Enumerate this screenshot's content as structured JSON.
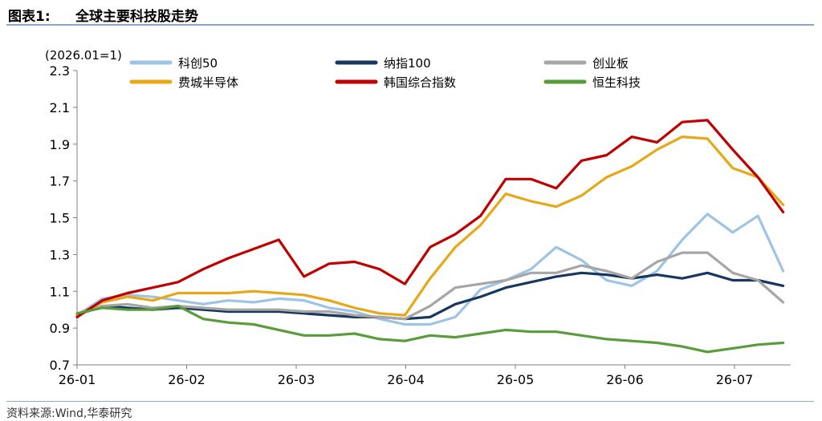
{
  "header": {
    "prefix": "图表1:",
    "title": "全球主要科技股走势"
  },
  "footer": {
    "source": "资料来源:Wind,华泰研究"
  },
  "chart_data": {
    "type": "line",
    "annotation": "(2026.01=1)",
    "ylim": [
      0.7,
      2.3
    ],
    "yticks": [
      0.7,
      0.9,
      1.1,
      1.3,
      1.5,
      1.7,
      1.9,
      2.1,
      2.3
    ],
    "xticks": [
      "26-01",
      "26-02",
      "26-03",
      "26-04",
      "26-05",
      "26-06",
      "26-07"
    ],
    "x_points": [
      "26-01-01",
      "26-01-08",
      "26-01-15",
      "26-01-22",
      "26-01-29",
      "26-02-05",
      "26-02-12",
      "26-02-19",
      "26-02-26",
      "26-03-05",
      "26-03-12",
      "26-03-19",
      "26-03-26",
      "26-04-02",
      "26-04-09",
      "26-04-16",
      "26-04-23",
      "26-04-30",
      "26-05-07",
      "26-05-14",
      "26-05-21",
      "26-05-28",
      "26-06-04",
      "26-06-11",
      "26-06-18",
      "26-06-25",
      "26-07-02",
      "26-07-09",
      "26-07-16"
    ],
    "legend_placement": "top",
    "grid": false,
    "series": [
      {
        "name": "科创50",
        "color": "#9dc3e6",
        "values": [
          0.97,
          1.06,
          1.08,
          1.07,
          1.05,
          1.03,
          1.05,
          1.04,
          1.06,
          1.05,
          1.01,
          0.99,
          0.95,
          0.92,
          0.92,
          0.96,
          1.11,
          1.16,
          1.22,
          1.34,
          1.27,
          1.16,
          1.13,
          1.21,
          1.38,
          1.52,
          1.42,
          1.51,
          1.21
        ]
      },
      {
        "name": "纳指100",
        "color": "#17375e",
        "values": [
          0.97,
          1.02,
          1.01,
          1.0,
          1.01,
          1.0,
          0.99,
          0.99,
          0.99,
          0.98,
          0.97,
          0.96,
          0.96,
          0.95,
          0.96,
          1.03,
          1.07,
          1.12,
          1.15,
          1.18,
          1.2,
          1.19,
          1.17,
          1.19,
          1.17,
          1.2,
          1.16,
          1.16,
          1.13
        ]
      },
      {
        "name": "创业板",
        "color": "#a6a6a6",
        "values": [
          0.97,
          1.02,
          1.03,
          1.01,
          1.02,
          1.01,
          1.0,
          1.0,
          1.0,
          0.99,
          0.99,
          0.97,
          0.96,
          0.95,
          1.02,
          1.12,
          1.14,
          1.16,
          1.2,
          1.2,
          1.24,
          1.21,
          1.17,
          1.26,
          1.31,
          1.31,
          1.2,
          1.16,
          1.04
        ]
      },
      {
        "name": "费城半导体",
        "color": "#e6a817",
        "values": [
          0.97,
          1.04,
          1.07,
          1.05,
          1.09,
          1.09,
          1.09,
          1.1,
          1.09,
          1.08,
          1.05,
          1.01,
          0.98,
          0.97,
          1.17,
          1.34,
          1.46,
          1.63,
          1.59,
          1.56,
          1.62,
          1.72,
          1.78,
          1.87,
          1.94,
          1.93,
          1.77,
          1.72,
          1.57
        ]
      },
      {
        "name": "韩国综合指数",
        "color": "#c00000",
        "values": [
          0.96,
          1.05,
          1.09,
          1.12,
          1.15,
          1.22,
          1.28,
          1.33,
          1.38,
          1.18,
          1.25,
          1.26,
          1.22,
          1.14,
          1.34,
          1.41,
          1.51,
          1.71,
          1.71,
          1.66,
          1.81,
          1.84,
          1.94,
          1.91,
          2.02,
          2.03,
          1.87,
          1.72,
          1.53
        ]
      },
      {
        "name": "恒生科技",
        "color": "#5a9b3c",
        "values": [
          0.98,
          1.01,
          1.0,
          1.0,
          1.02,
          0.95,
          0.93,
          0.92,
          0.89,
          0.86,
          0.86,
          0.87,
          0.84,
          0.83,
          0.86,
          0.85,
          0.87,
          0.89,
          0.88,
          0.88,
          0.86,
          0.84,
          0.83,
          0.82,
          0.8,
          0.77,
          0.79,
          0.81,
          0.82
        ]
      }
    ]
  }
}
